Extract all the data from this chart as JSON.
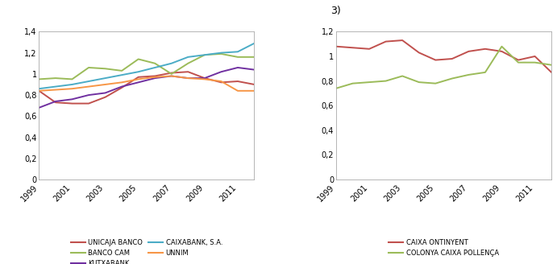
{
  "years": [
    1999,
    2000,
    2001,
    2002,
    2003,
    2004,
    2005,
    2006,
    2007,
    2008,
    2009,
    2010,
    2011,
    2012
  ],
  "chart1": {
    "unicaja": [
      0.84,
      0.73,
      0.72,
      0.72,
      0.78,
      0.87,
      0.97,
      0.98,
      1.01,
      1.02,
      0.96,
      0.92,
      0.93,
      0.9
    ],
    "kutxabank": [
      0.68,
      0.74,
      0.76,
      0.8,
      0.82,
      0.88,
      0.92,
      0.96,
      0.98,
      0.96,
      0.96,
      1.02,
      1.06,
      1.04
    ],
    "unnim": [
      0.84,
      0.85,
      0.86,
      0.88,
      0.9,
      0.92,
      0.95,
      0.97,
      0.98,
      0.96,
      0.95,
      0.93,
      0.84,
      0.84
    ],
    "banco_cam": [
      0.95,
      0.96,
      0.95,
      1.06,
      1.05,
      1.03,
      1.14,
      1.1,
      1.0,
      1.1,
      1.18,
      1.19,
      1.16,
      1.16
    ],
    "caixabank": [
      0.86,
      0.88,
      0.9,
      0.93,
      0.96,
      0.99,
      1.02,
      1.06,
      1.1,
      1.16,
      1.18,
      1.2,
      1.21,
      1.29
    ],
    "colors": {
      "unicaja": "#c0504d",
      "kutxabank": "#7030a0",
      "unnim": "#f79646",
      "banco_cam": "#9bbb59",
      "caixabank": "#4bacc6"
    },
    "labels": {
      "unicaja": "UNICAJA BANCO",
      "kutxabank": "KUTXABANK",
      "unnim": "UNNIM",
      "banco_cam": "BANCO CAM",
      "caixabank": "CAIXABANK, S.A."
    },
    "ylim": [
      0,
      1.4
    ],
    "yticks": [
      0,
      0.2,
      0.4,
      0.6,
      0.8,
      1.0,
      1.2,
      1.4
    ]
  },
  "chart2": {
    "caixa_ontinyent": [
      1.08,
      1.07,
      1.06,
      1.12,
      1.13,
      1.03,
      0.97,
      0.98,
      1.04,
      1.06,
      1.04,
      0.97,
      1.0,
      0.87
    ],
    "colonya": [
      0.74,
      0.78,
      0.79,
      0.8,
      0.84,
      0.79,
      0.78,
      0.82,
      0.85,
      0.87,
      1.08,
      0.95,
      0.95,
      0.93
    ],
    "colors": {
      "caixa_ontinyent": "#c0504d",
      "colonya": "#9bbb59"
    },
    "labels": {
      "caixa_ontinyent": "CAIXA ONTINYENT",
      "colonya": "COLONYA CAIXA POLLENÇA"
    },
    "ylim": [
      0,
      1.2
    ],
    "yticks": [
      0,
      0.2,
      0.4,
      0.6,
      0.8,
      1.0,
      1.2
    ]
  },
  "subtitle2": "3)"
}
